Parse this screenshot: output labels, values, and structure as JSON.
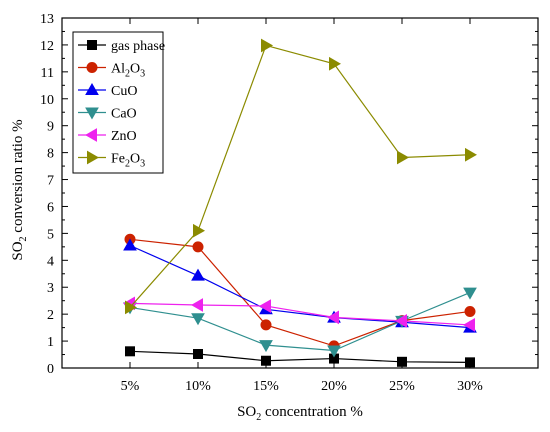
{
  "chart_data": {
    "type": "line",
    "categories": [
      "5%",
      "10%",
      "15%",
      "20%",
      "25%",
      "30%"
    ],
    "ylim": [
      0,
      13
    ],
    "yticks": [
      0,
      1,
      2,
      3,
      4,
      5,
      6,
      7,
      8,
      9,
      10,
      11,
      12,
      13
    ],
    "xlabel": {
      "base": "SO",
      "sub": "2",
      "rest": " concentration %"
    },
    "ylabel": {
      "base": "SO",
      "sub": "2",
      "rest": " conversion ratio %"
    },
    "grid": false,
    "legend_position": "top-left",
    "series": [
      {
        "name": "gas phase",
        "name_base": "gas phase",
        "name_sub": "",
        "name_rest": "",
        "marker": "square",
        "color": "#000000",
        "values": [
          0.62,
          0.52,
          0.27,
          0.35,
          0.23,
          0.21
        ]
      },
      {
        "name": "Al2O3",
        "name_base": "Al",
        "name_sub": "2",
        "name_rest": "O",
        "name_sub2": "3",
        "marker": "circle",
        "color": "#cc2200",
        "values": [
          4.78,
          4.5,
          1.6,
          0.82,
          1.76,
          2.1
        ]
      },
      {
        "name": "CuO",
        "name_base": "CuO",
        "name_sub": "",
        "name_rest": "",
        "marker": "triangle-up",
        "color": "#0000ee",
        "values": [
          4.55,
          3.43,
          2.18,
          1.87,
          1.7,
          1.5
        ]
      },
      {
        "name": "CaO",
        "name_base": "CaO",
        "name_sub": "",
        "name_rest": "",
        "marker": "triangle-down",
        "color": "#2f8f8f",
        "values": [
          2.25,
          1.85,
          0.85,
          0.65,
          1.75,
          2.8
        ]
      },
      {
        "name": "ZnO",
        "name_base": "ZnO",
        "name_sub": "",
        "name_rest": "",
        "marker": "triangle-left",
        "color": "#ee22ee",
        "values": [
          2.4,
          2.34,
          2.3,
          1.88,
          1.75,
          1.6
        ]
      },
      {
        "name": "Fe2O3",
        "name_base": "Fe",
        "name_sub": "2",
        "name_rest": "O",
        "name_sub2": "3",
        "marker": "triangle-right",
        "color": "#8b8b00",
        "values": [
          2.25,
          5.1,
          11.98,
          11.3,
          7.82,
          7.92
        ]
      }
    ]
  }
}
